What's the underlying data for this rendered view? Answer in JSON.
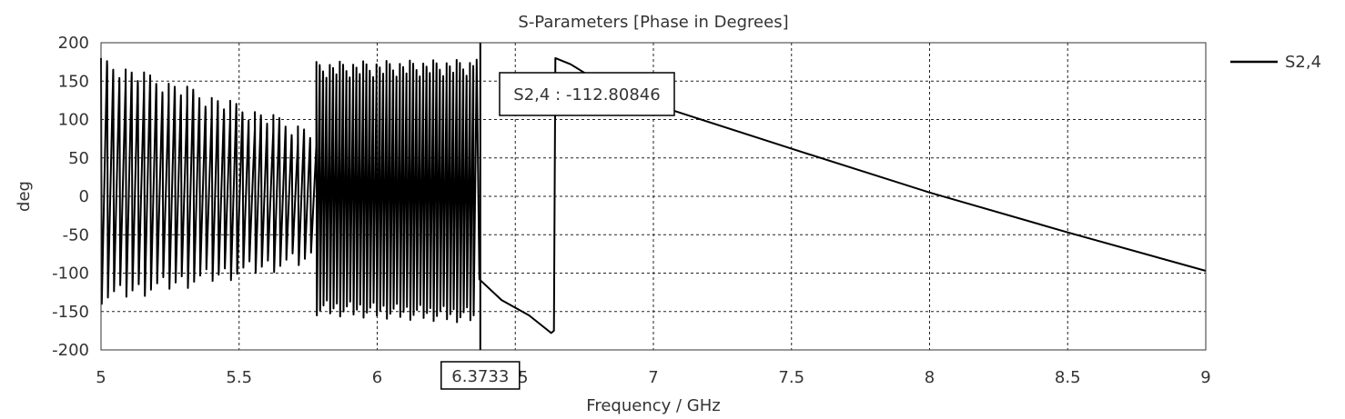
{
  "chart_data": {
    "type": "line",
    "title": "S-Parameters [Phase in Degrees]",
    "xlabel": "Frequency / GHz",
    "ylabel": "deg",
    "xlim": [
      5,
      9
    ],
    "ylim": [
      -200,
      200
    ],
    "xticks": [
      "5",
      "5.5",
      "6",
      "6.5",
      "7",
      "7.5",
      "8",
      "8.5",
      "9"
    ],
    "yticks": [
      "200",
      "150",
      "100",
      "50",
      "0",
      "-50",
      "-100",
      "-150",
      "-200"
    ],
    "grid": true,
    "legend_position": "right",
    "series": [
      {
        "name": "S2,4",
        "color": "#000000",
        "segments": [
          {
            "kind": "wrapped",
            "x_start": 5.0,
            "x_end": 5.78,
            "cycles": 35,
            "top_start": 180,
            "top_end": 90,
            "bottom_start": -140,
            "bottom_end": -90
          },
          {
            "kind": "wrapped",
            "x_start": 5.78,
            "x_end": 6.36,
            "cycles": 48,
            "top_start": 175,
            "top_end": 178,
            "bottom_start": -155,
            "bottom_end": -165
          },
          {
            "kind": "points",
            "points": [
              [
                6.36,
                178
              ],
              [
                6.37,
                -108
              ],
              [
                6.45,
                -135
              ],
              [
                6.55,
                -155
              ],
              [
                6.63,
                -178
              ],
              [
                6.64,
                -175
              ],
              [
                6.645,
                180
              ],
              [
                6.7,
                172
              ],
              [
                6.8,
                150
              ],
              [
                7.0,
                120
              ],
              [
                7.5,
                62
              ],
              [
                8.0,
                5
              ],
              [
                8.5,
                -47
              ],
              [
                9.0,
                -97
              ]
            ]
          }
        ]
      }
    ],
    "marker": {
      "x": 6.3733,
      "x_label": "6.3733",
      "readout": "S2,4 : -112.80846"
    }
  }
}
